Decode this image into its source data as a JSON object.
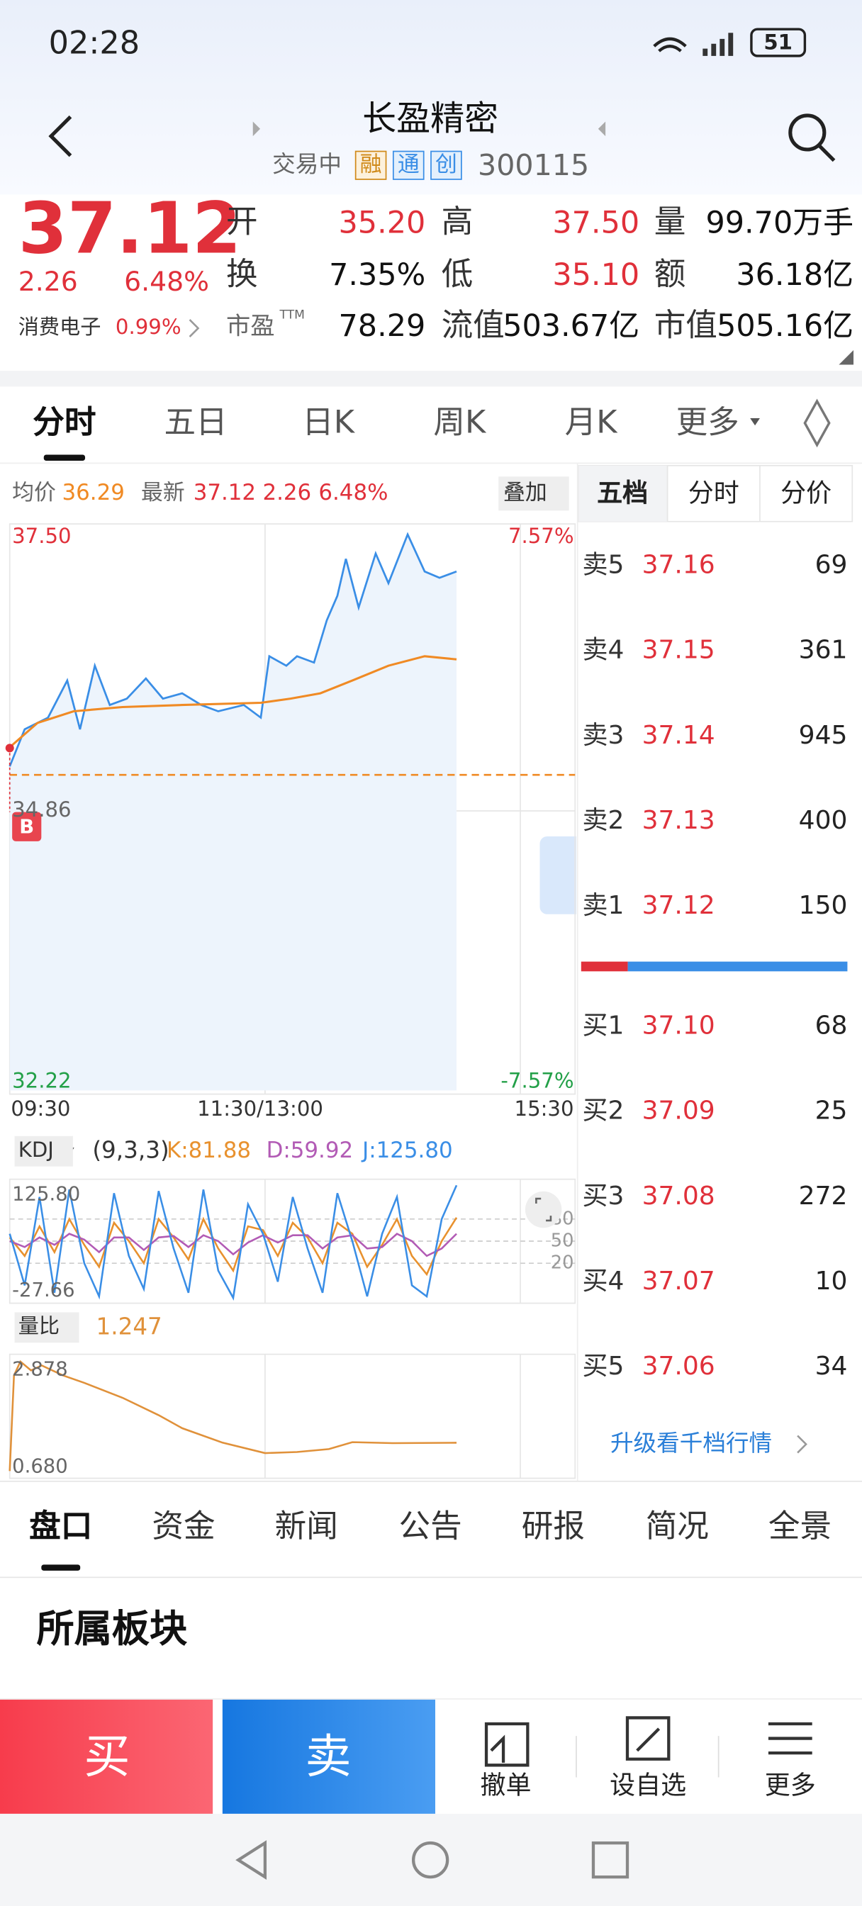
{
  "status_bar": {
    "time": "02:28",
    "battery": "51"
  },
  "header": {
    "title": "长盈精密",
    "status": "交易中",
    "tags": [
      "融",
      "通",
      "创"
    ],
    "code": "300115"
  },
  "quote": {
    "price": "37.12",
    "change": "2.26",
    "change_pct": "6.48%",
    "stats": [
      {
        "label": "开",
        "value": "35.20",
        "color": "#e0303a"
      },
      {
        "label": "高",
        "value": "37.50",
        "color": "#e0303a"
      },
      {
        "label": "量",
        "value": "99.70万手"
      },
      {
        "label": "换",
        "value": "7.35%"
      },
      {
        "label": "低",
        "value": "35.10",
        "color": "#e0303a"
      },
      {
        "label": "额",
        "value": "36.18亿"
      },
      {
        "label": "市盈",
        "sup": "TTM",
        "value": "78.29"
      },
      {
        "label": "流值",
        "value": "503.67亿"
      },
      {
        "label": "市值",
        "value": "505.16亿"
      }
    ],
    "sector": {
      "name": "消费电子",
      "change": "0.99%"
    }
  },
  "chart_tabs": [
    "分时",
    "五日",
    "日K",
    "周K",
    "月K",
    "更多"
  ],
  "intraday": {
    "avg_label": "均价",
    "avg_value": "36.29",
    "latest_label": "最新",
    "latest_value": "37.12",
    "latest_change": "2.26",
    "latest_pct": "6.48%",
    "overlay": "叠加",
    "marker": "B",
    "xlim": [
      0,
      240
    ],
    "x_labels": [
      "09:30",
      "11:30/13:00",
      "15:30"
    ],
    "ylim": [
      32.22,
      37.5
    ],
    "yticks": [
      {
        "value": 37.5,
        "label": "37.50"
      },
      {
        "value": 34.86,
        "label": "34.86"
      },
      {
        "value": 32.22,
        "label": "32.22"
      }
    ],
    "y2lim": [
      -7.57,
      7.57
    ],
    "y2ticks": [
      {
        "value": 7.57,
        "label": "7.57%"
      },
      {
        "value": -7.57,
        "label": "-7.57%"
      }
    ],
    "price": {
      "color": "#3a8ee6",
      "x": [
        0,
        7,
        18,
        27,
        33,
        40,
        47,
        55,
        64,
        72,
        81,
        90,
        98,
        110,
        118,
        122,
        130,
        135,
        143,
        149,
        154,
        158,
        164,
        172,
        178,
        187,
        195,
        202,
        210
      ],
      "values": [
        35.28,
        35.63,
        35.74,
        36.09,
        35.63,
        36.23,
        35.86,
        35.92,
        36.11,
        35.92,
        35.97,
        35.86,
        35.8,
        35.86,
        35.74,
        36.32,
        36.23,
        36.32,
        36.26,
        36.66,
        36.89,
        37.24,
        36.78,
        37.29,
        37.01,
        37.47,
        37.12,
        37.06,
        37.12
      ]
    },
    "avg": {
      "color": "#f08a24",
      "x": [
        0,
        13,
        30,
        53,
        81,
        118,
        132,
        146,
        161,
        178,
        195,
        210
      ],
      "values": [
        35.46,
        35.69,
        35.8,
        35.84,
        35.86,
        35.88,
        35.92,
        35.97,
        36.09,
        36.23,
        36.32,
        36.29
      ]
    }
  },
  "kdj": {
    "name": "KDJ",
    "params": "(9,3,3)",
    "k_label": "K:81.88",
    "d_label": "D:59.92",
    "j_label": "J:125.80",
    "ylim": [
      -27.66,
      125.8
    ],
    "yticks": [
      {
        "value": 125.8,
        "label": "125.80"
      },
      {
        "value": -27.66,
        "label": "-27.66"
      }
    ],
    "levels": [
      80,
      50,
      20
    ],
    "x": [
      0,
      7,
      14,
      21,
      28,
      35,
      42,
      49,
      56,
      63,
      70,
      77,
      84,
      91,
      98,
      105,
      112,
      119,
      126,
      133,
      140,
      147,
      154,
      161,
      168,
      175,
      182,
      189,
      196,
      203,
      210
    ],
    "series": [
      {
        "name": "K",
        "color": "#e8912e",
        "values": [
          55,
          30,
          70,
          35,
          80,
          45,
          15,
          75,
          50,
          20,
          80,
          55,
          25,
          80,
          40,
          10,
          70,
          65,
          30,
          75,
          55,
          20,
          75,
          60,
          15,
          45,
          80,
          30,
          5,
          50,
          81.88
        ]
      },
      {
        "name": "D",
        "color": "#b25bb5",
        "values": [
          50,
          42,
          55,
          45,
          60,
          52,
          35,
          55,
          55,
          38,
          55,
          57,
          42,
          58,
          50,
          32,
          48,
          58,
          48,
          58,
          58,
          40,
          55,
          58,
          40,
          42,
          60,
          50,
          30,
          40,
          59.92
        ]
      },
      {
        "name": "J",
        "color": "#3a8ee6",
        "values": [
          60,
          -10,
          110,
          -20,
          120,
          20,
          -25,
          115,
          30,
          -15,
          118,
          40,
          -20,
          120,
          10,
          -27,
          100,
          60,
          -5,
          110,
          40,
          -20,
          115,
          50,
          -25,
          60,
          110,
          -10,
          -25,
          80,
          125.8
        ]
      }
    ]
  },
  "volume_ratio": {
    "name": "量比",
    "value": "1.247",
    "color": "#e0913a",
    "ylim": [
      0.68,
      2.878
    ],
    "yticks": [
      {
        "value": 2.878,
        "label": "2.878"
      },
      {
        "value": 0.68,
        "label": "0.680"
      }
    ],
    "x": [
      0,
      2,
      5,
      10,
      15,
      25,
      35,
      53,
      70,
      81,
      100,
      120,
      135,
      150,
      161,
      180,
      210
    ],
    "values": [
      0.68,
      2.6,
      2.878,
      2.7,
      2.8,
      2.6,
      2.45,
      2.15,
      1.8,
      1.54,
      1.25,
      1.04,
      1.06,
      1.12,
      1.26,
      1.24,
      1.247
    ]
  },
  "book": {
    "tabs": [
      "五档",
      "分时",
      "分价"
    ],
    "asks": [
      {
        "label": "卖5",
        "price": "37.16",
        "volume": 69
      },
      {
        "label": "卖4",
        "price": "37.15",
        "volume": 361
      },
      {
        "label": "卖3",
        "price": "37.14",
        "volume": 945
      },
      {
        "label": "卖2",
        "price": "37.13",
        "volume": 400
      },
      {
        "label": "卖1",
        "price": "37.12",
        "volume": 150
      }
    ],
    "bids": [
      {
        "label": "买1",
        "price": "37.10",
        "volume": 68
      },
      {
        "label": "买2",
        "price": "37.09",
        "volume": 25
      },
      {
        "label": "买3",
        "price": "37.08",
        "volume": 272
      },
      {
        "label": "买4",
        "price": "37.07",
        "volume": 10
      },
      {
        "label": "买5",
        "price": "37.06",
        "volume": 34
      }
    ],
    "upgrade": "升级看千档行情"
  },
  "bottom_tabs": [
    "盘口",
    "资金",
    "新闻",
    "公告",
    "研报",
    "简况",
    "全景"
  ],
  "section": {
    "title": "所属板块"
  },
  "actions": {
    "buy": "买",
    "sell": "卖",
    "tools": [
      "撤单",
      "设自选",
      "更多"
    ]
  }
}
